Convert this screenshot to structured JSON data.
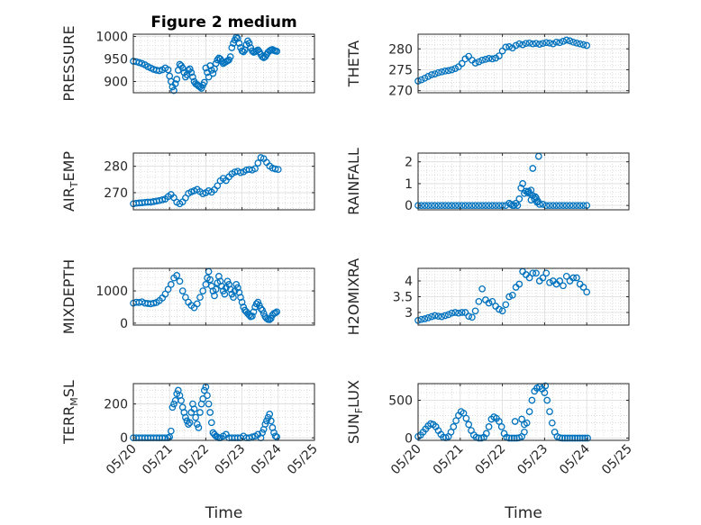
{
  "figure": {
    "title": "Figure 2 medium",
    "marker_color": "#0072BD"
  },
  "chart_data": [
    {
      "type": "scatter",
      "ylabel": "PRESSURE",
      "ylabel_sub": null,
      "ylim": [
        875,
        1005
      ],
      "yticks": [
        900,
        950,
        1000
      ],
      "xticks": [
        "05/20",
        "05/21",
        "05/22",
        "05/23",
        "05/24",
        "05/25"
      ],
      "xlim": [
        0,
        5
      ],
      "xlabel": "",
      "title": "Figure 2 medium",
      "grid": true,
      "x": [
        0,
        0.08,
        0.16,
        0.24,
        0.32,
        0.4,
        0.48,
        0.56,
        0.64,
        0.72,
        0.8,
        0.88,
        0.96,
        1.0,
        1.04,
        1.08,
        1.12,
        1.16,
        1.2,
        1.24,
        1.28,
        1.32,
        1.36,
        1.4,
        1.44,
        1.48,
        1.52,
        1.56,
        1.6,
        1.64,
        1.68,
        1.72,
        1.76,
        1.8,
        1.84,
        1.88,
        1.92,
        1.96,
        2.0,
        2.04,
        2.08,
        2.12,
        2.16,
        2.2,
        2.24,
        2.28,
        2.32,
        2.36,
        2.4,
        2.44,
        2.48,
        2.52,
        2.56,
        2.6,
        2.64,
        2.68,
        2.72,
        2.76,
        2.8,
        2.84,
        2.88,
        2.92,
        2.96,
        3.0,
        3.04,
        3.08,
        3.12,
        3.16,
        3.2,
        3.24,
        3.28,
        3.32,
        3.36,
        3.4,
        3.44,
        3.48,
        3.52,
        3.56,
        3.6,
        3.64,
        3.68,
        3.72,
        3.76,
        3.8,
        3.84,
        3.88,
        3.92,
        3.96
      ],
      "y": [
        945,
        944,
        942,
        940,
        937,
        933,
        930,
        927,
        925,
        924,
        926,
        930,
        926,
        912,
        900,
        888,
        880,
        895,
        905,
        925,
        938,
        935,
        930,
        920,
        910,
        915,
        925,
        928,
        920,
        910,
        900,
        895,
        893,
        890,
        888,
        885,
        892,
        898,
        930,
        920,
        910,
        935,
        925,
        918,
        928,
        940,
        948,
        952,
        950,
        945,
        940,
        942,
        944,
        946,
        948,
        955,
        975,
        985,
        992,
        998,
        996,
        985,
        975,
        968,
        966,
        970,
        982,
        990,
        985,
        975,
        968,
        965,
        966,
        968,
        970,
        966,
        960,
        955,
        953,
        955,
        960,
        965,
        968,
        970,
        971,
        969,
        968,
        967
      ]
    },
    {
      "type": "scatter",
      "ylabel": "THETA",
      "ylabel_sub": null,
      "ylim": [
        269.5,
        283.5
      ],
      "yticks": [
        270,
        275,
        280
      ],
      "xticks": [
        "05/20",
        "05/21",
        "05/22",
        "05/23",
        "05/24",
        "05/25"
      ],
      "xlim": [
        0,
        5
      ],
      "xlabel": "",
      "grid": true,
      "x": [
        0,
        0.08,
        0.16,
        0.24,
        0.32,
        0.4,
        0.48,
        0.56,
        0.64,
        0.72,
        0.8,
        0.88,
        0.96,
        1.04,
        1.12,
        1.2,
        1.28,
        1.36,
        1.44,
        1.52,
        1.6,
        1.68,
        1.76,
        1.84,
        1.92,
        2.0,
        2.08,
        2.16,
        2.24,
        2.32,
        2.4,
        2.48,
        2.56,
        2.64,
        2.72,
        2.8,
        2.88,
        2.96,
        3.04,
        3.12,
        3.2,
        3.28,
        3.36,
        3.44,
        3.52,
        3.6,
        3.68,
        3.76,
        3.84,
        3.92,
        4.0
      ],
      "y": [
        272.3,
        272.6,
        273.0,
        273.4,
        273.8,
        274.0,
        274.3,
        274.5,
        274.7,
        274.8,
        275.0,
        275.3,
        275.7,
        276.5,
        277.6,
        278.2,
        277.3,
        276.6,
        276.9,
        277.3,
        277.5,
        277.7,
        277.6,
        277.8,
        278.3,
        279.5,
        280.4,
        280.5,
        280.2,
        280.8,
        281.2,
        281.0,
        281.3,
        281.4,
        281.2,
        281.3,
        281.1,
        281.3,
        281.5,
        281.4,
        281.2,
        281.6,
        281.5,
        281.8,
        282.1,
        281.9,
        281.6,
        281.4,
        281.2,
        281.0,
        280.8
      ]
    },
    {
      "type": "scatter",
      "ylabel": "AIR",
      "ylabel_sub": "T",
      "ylabel_rest": "EMP",
      "ylim": [
        263.5,
        285
      ],
      "yticks": [
        270,
        280
      ],
      "xticks": [
        "05/20",
        "05/21",
        "05/22",
        "05/23",
        "05/24",
        "05/25"
      ],
      "xlim": [
        0,
        5
      ],
      "xlabel": "",
      "grid": true,
      "x": [
        0,
        0.08,
        0.16,
        0.24,
        0.32,
        0.4,
        0.48,
        0.56,
        0.64,
        0.72,
        0.8,
        0.88,
        0.96,
        1.04,
        1.12,
        1.2,
        1.28,
        1.36,
        1.44,
        1.52,
        1.6,
        1.68,
        1.76,
        1.84,
        1.92,
        2.0,
        2.08,
        2.16,
        2.24,
        2.32,
        2.4,
        2.48,
        2.56,
        2.64,
        2.72,
        2.8,
        2.88,
        2.96,
        3.04,
        3.12,
        3.2,
        3.28,
        3.36,
        3.44,
        3.52,
        3.6,
        3.68,
        3.76,
        3.84,
        3.92,
        4.0
      ],
      "y": [
        265.8,
        266.0,
        266.1,
        266.2,
        266.3,
        266.4,
        266.4,
        266.6,
        266.8,
        267.0,
        267.3,
        267.6,
        268.5,
        269.3,
        268.1,
        266.4,
        265.8,
        266.5,
        268.0,
        269.7,
        270.3,
        270.7,
        271.2,
        270.4,
        269.6,
        270.0,
        270.7,
        270.2,
        271.1,
        272.6,
        274.5,
        275.4,
        274.6,
        276.0,
        277.1,
        277.8,
        278.1,
        277.6,
        277.9,
        278.6,
        278.8,
        278.6,
        279.1,
        281.2,
        283.3,
        282.9,
        281.5,
        280.1,
        279.3,
        279.0,
        278.8
      ]
    },
    {
      "type": "scatter",
      "ylabel": "RAINFALL",
      "ylabel_sub": null,
      "ylim": [
        -0.2,
        2.4
      ],
      "yticks": [
        0,
        1,
        2
      ],
      "xticks": [
        "05/20",
        "05/21",
        "05/22",
        "05/23",
        "05/24",
        "05/25"
      ],
      "xlim": [
        0,
        5
      ],
      "xlabel": "",
      "grid": true,
      "x": [
        0,
        0.08,
        0.16,
        0.24,
        0.32,
        0.4,
        0.48,
        0.56,
        0.64,
        0.72,
        0.8,
        0.88,
        0.96,
        1.04,
        1.12,
        1.2,
        1.28,
        1.36,
        1.44,
        1.52,
        1.6,
        1.68,
        1.76,
        1.84,
        1.92,
        2.0,
        2.08,
        2.16,
        2.2,
        2.24,
        2.28,
        2.32,
        2.36,
        2.4,
        2.44,
        2.48,
        2.52,
        2.56,
        2.6,
        2.64,
        2.68,
        2.72,
        2.76,
        2.8,
        2.84,
        2.88,
        2.96,
        3.04,
        3.12,
        3.2,
        3.28,
        3.36,
        3.44,
        3.52,
        3.6,
        3.68,
        3.76,
        3.84,
        3.92,
        4.0
      ],
      "y": [
        0,
        0,
        0,
        0,
        0,
        0,
        0,
        0,
        0,
        0,
        0,
        0,
        0,
        0,
        0,
        0,
        0,
        0,
        0,
        0,
        0,
        0,
        0,
        0,
        0,
        0,
        0,
        0.1,
        0.05,
        0,
        0,
        0.1,
        0,
        0.3,
        0.8,
        1.0,
        0.55,
        0.65,
        0.6,
        0.55,
        0.7,
        0.45,
        0.3,
        0.35,
        0.2,
        0.05,
        0.05,
        0,
        0,
        0,
        0,
        0,
        0,
        0,
        0,
        0,
        0,
        0,
        0,
        0
      ],
      "extra_points": [
        [
          2.72,
          1.7
        ],
        [
          2.86,
          2.25
        ],
        [
          2.62,
          0.65
        ],
        [
          2.78,
          0.4
        ],
        [
          2.82,
          0.15
        ],
        [
          2.68,
          0.25
        ]
      ]
    },
    {
      "type": "scatter",
      "ylabel": "MIXDEPTH",
      "ylabel_sub": null,
      "ylim": [
        -60,
        1700
      ],
      "yticks": [
        0,
        1000
      ],
      "xticks": [
        "05/20",
        "05/21",
        "05/22",
        "05/23",
        "05/24",
        "05/25"
      ],
      "xlim": [
        0,
        5
      ],
      "xlabel": "",
      "grid": true,
      "x": [
        0,
        0.08,
        0.16,
        0.24,
        0.32,
        0.4,
        0.48,
        0.56,
        0.64,
        0.72,
        0.8,
        0.88,
        0.96,
        1.04,
        1.12,
        1.2,
        1.28,
        1.36,
        1.44,
        1.52,
        1.6,
        1.68,
        1.76,
        1.84,
        1.92,
        2.0,
        2.04,
        2.08,
        2.12,
        2.16,
        2.2,
        2.24,
        2.28,
        2.32,
        2.36,
        2.4,
        2.44,
        2.48,
        2.52,
        2.56,
        2.6,
        2.64,
        2.68,
        2.72,
        2.76,
        2.8,
        2.84,
        2.88,
        2.92,
        2.96,
        3.0,
        3.04,
        3.08,
        3.12,
        3.16,
        3.2,
        3.24,
        3.28,
        3.32,
        3.36,
        3.4,
        3.44,
        3.48,
        3.52,
        3.56,
        3.6,
        3.64,
        3.68,
        3.72,
        3.76,
        3.8,
        3.84,
        3.88,
        3.92,
        3.96
      ],
      "y": [
        620,
        650,
        640,
        660,
        620,
        610,
        600,
        620,
        640,
        700,
        780,
        900,
        1050,
        1200,
        1400,
        1480,
        1300,
        1000,
        800,
        650,
        550,
        480,
        600,
        800,
        1000,
        1200,
        1400,
        1600,
        1350,
        1150,
        1000,
        850,
        1050,
        1250,
        1450,
        1300,
        1150,
        1000,
        900,
        1100,
        1300,
        1200,
        1050,
        900,
        800,
        1000,
        1200,
        1100,
        950,
        800,
        650,
        500,
        400,
        350,
        300,
        250,
        200,
        220,
        350,
        500,
        600,
        650,
        550,
        450,
        400,
        300,
        200,
        150,
        120,
        110,
        150,
        250,
        300,
        320,
        350
      ]
    },
    {
      "type": "scatter",
      "ylabel": "H2OMIXRA",
      "ylabel_sub": null,
      "ylim": [
        2.6,
        4.4
      ],
      "yticks": [
        3,
        3.5,
        4
      ],
      "xticks": [
        "05/20",
        "05/21",
        "05/22",
        "05/23",
        "05/24",
        "05/25"
      ],
      "xlim": [
        0,
        5
      ],
      "xlabel": "",
      "grid": true,
      "x": [
        0,
        0.08,
        0.16,
        0.24,
        0.32,
        0.4,
        0.48,
        0.56,
        0.64,
        0.72,
        0.8,
        0.88,
        0.96,
        1.04,
        1.12,
        1.2,
        1.28,
        1.36,
        1.44,
        1.52,
        1.6,
        1.68,
        1.76,
        1.84,
        1.92,
        2.0,
        2.08,
        2.16,
        2.24,
        2.32,
        2.4,
        2.48,
        2.56,
        2.64,
        2.72,
        2.8,
        2.88,
        2.96,
        3.04,
        3.12,
        3.2,
        3.28,
        3.36,
        3.44,
        3.52,
        3.6,
        3.68,
        3.76,
        3.84,
        3.92,
        4.0
      ],
      "y": [
        2.75,
        2.78,
        2.8,
        2.83,
        2.87,
        2.9,
        2.88,
        2.87,
        2.9,
        2.93,
        2.98,
        3.0,
        2.98,
        3.0,
        3.0,
        2.88,
        2.85,
        3.05,
        3.35,
        3.75,
        3.4,
        3.3,
        3.35,
        3.2,
        3.1,
        3.05,
        3.25,
        3.5,
        3.55,
        3.8,
        3.9,
        4.3,
        4.2,
        4.1,
        4.25,
        4.25,
        4.0,
        4.1,
        4.25,
        3.95,
        4.0,
        3.9,
        4.0,
        3.85,
        4.15,
        4.0,
        4.1,
        4.1,
        3.9,
        3.8,
        3.65
      ]
    },
    {
      "type": "scatter",
      "ylabel": "TERR",
      "ylabel_sub": "M",
      "ylabel_rest": "SL",
      "ylim": [
        -15,
        320
      ],
      "yticks": [
        0,
        200
      ],
      "xticks": [
        "05/20",
        "05/21",
        "05/22",
        "05/23",
        "05/24",
        "05/25"
      ],
      "xlim": [
        0,
        5
      ],
      "xlabel": "Time",
      "grid": true,
      "x": [
        0,
        0.08,
        0.16,
        0.24,
        0.32,
        0.4,
        0.48,
        0.56,
        0.64,
        0.72,
        0.8,
        0.88,
        0.96,
        1.0,
        1.04,
        1.08,
        1.12,
        1.16,
        1.2,
        1.24,
        1.28,
        1.32,
        1.36,
        1.4,
        1.44,
        1.48,
        1.52,
        1.56,
        1.6,
        1.64,
        1.68,
        1.72,
        1.76,
        1.8,
        1.84,
        1.88,
        1.92,
        1.96,
        2.0,
        2.04,
        2.08,
        2.12,
        2.16,
        2.2,
        2.24,
        2.28,
        2.32,
        2.36,
        2.4,
        2.48,
        2.56,
        2.64,
        2.72,
        2.8,
        2.88,
        2.96,
        3.04,
        3.12,
        3.2,
        3.28,
        3.36,
        3.44,
        3.52,
        3.56,
        3.6,
        3.64,
        3.68,
        3.72,
        3.76,
        3.8,
        3.84,
        3.88,
        3.92,
        3.96
      ],
      "y": [
        0,
        0,
        0,
        0,
        0,
        0,
        0,
        0,
        0,
        0,
        0,
        0,
        0,
        5,
        40,
        180,
        200,
        220,
        260,
        280,
        250,
        220,
        180,
        150,
        120,
        100,
        80,
        90,
        150,
        200,
        170,
        120,
        80,
        60,
        150,
        200,
        230,
        280,
        300,
        250,
        200,
        150,
        90,
        30,
        20,
        10,
        5,
        0,
        0,
        10,
        20,
        0,
        0,
        0,
        0,
        0,
        10,
        0,
        0,
        5,
        10,
        20,
        0,
        30,
        50,
        80,
        100,
        120,
        140,
        100,
        60,
        30,
        10,
        5
      ]
    },
    {
      "type": "scatter",
      "ylabel": "SUN",
      "ylabel_sub": "F",
      "ylabel_rest": "LUX",
      "ylim": [
        -30,
        720
      ],
      "yticks": [
        0,
        500
      ],
      "xticks": [
        "05/20",
        "05/21",
        "05/22",
        "05/23",
        "05/24",
        "05/25"
      ],
      "xlim": [
        0,
        5
      ],
      "xlabel": "Time",
      "grid": true,
      "x": [
        0,
        0.06,
        0.12,
        0.18,
        0.24,
        0.3,
        0.36,
        0.42,
        0.48,
        0.54,
        0.6,
        0.66,
        0.72,
        0.78,
        0.84,
        0.9,
        0.96,
        1.02,
        1.08,
        1.14,
        1.2,
        1.26,
        1.32,
        1.38,
        1.44,
        1.5,
        1.56,
        1.62,
        1.68,
        1.74,
        1.8,
        1.86,
        1.92,
        1.98,
        2.04,
        2.1,
        2.16,
        2.22,
        2.28,
        2.34,
        2.4,
        2.46,
        2.52,
        2.58,
        2.64,
        2.7,
        2.76,
        2.82,
        2.88,
        2.94,
        3.0,
        3.06,
        3.12,
        3.18,
        3.24,
        3.3,
        3.36,
        3.42,
        3.48,
        3.54,
        3.6,
        3.66,
        3.72,
        3.78,
        3.84,
        3.9,
        3.96,
        4.02
      ],
      "y": [
        20,
        40,
        80,
        120,
        160,
        190,
        180,
        150,
        100,
        50,
        10,
        5,
        20,
        80,
        150,
        230,
        300,
        350,
        330,
        260,
        180,
        100,
        40,
        10,
        0,
        0,
        10,
        60,
        150,
        250,
        280,
        260,
        220,
        150,
        60,
        10,
        0,
        0,
        0,
        0,
        5,
        20,
        80,
        200,
        350,
        500,
        620,
        660,
        680,
        650,
        600,
        500,
        350,
        200,
        80,
        20,
        5,
        0,
        0,
        0,
        0,
        0,
        0,
        0,
        0,
        0,
        0,
        0
      ],
      "extra_points": [
        [
          2.3,
          220
        ],
        [
          2.46,
          250
        ],
        [
          2.52,
          180
        ],
        [
          3.02,
          690
        ]
      ]
    }
  ]
}
